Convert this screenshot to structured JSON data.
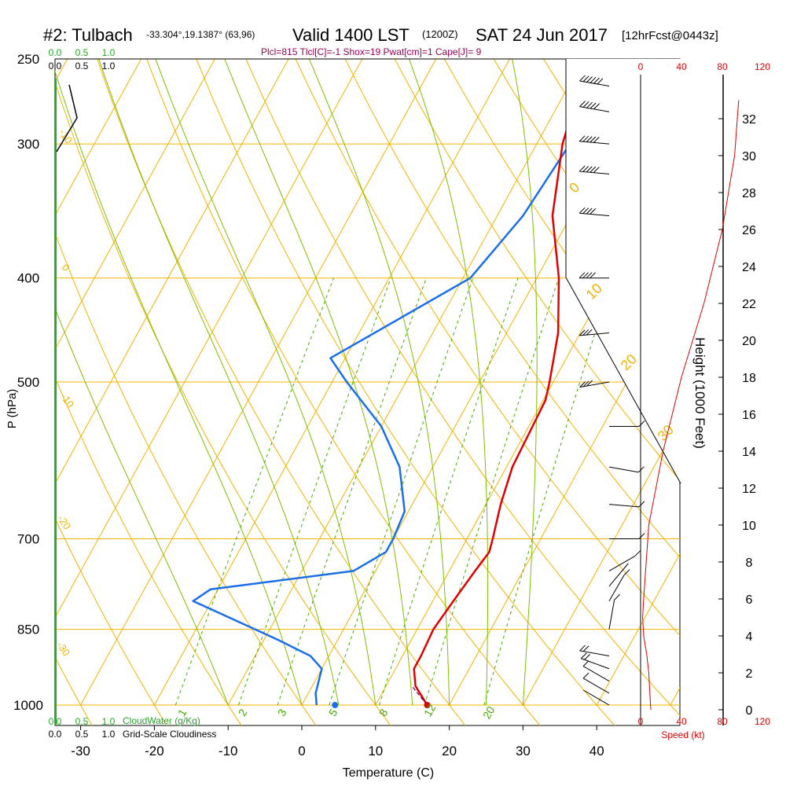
{
  "header": {
    "station": "#2: Tulbach",
    "coords": "-33.304°,19.1387° (63,96)",
    "valid": "Valid 1400 LST",
    "zulu": "(1200Z)",
    "date": "SAT 24 Jun 2017",
    "forecast": "[12hrFcst@0443z]",
    "params": "Plcl=815 Tlcl[C]=-1 Shox=19 Pwat[cm]=1 Cape[J]= 9"
  },
  "colors": {
    "isotherm": "#f0b400",
    "mixing": "#44aa00",
    "adiabat": "#7dbf00",
    "temperature": "#e00000",
    "dewpoint": "#1a6ee8",
    "cloud": "#22aa22",
    "speed": "#dd0000"
  },
  "chart_data": {
    "type": "skew-t",
    "xlabel": "Temperature (C)",
    "ylabel": "P (hPa)",
    "x_ticks": [
      "-30",
      "-20",
      "-10",
      "0",
      "10",
      "20",
      "30",
      "40"
    ],
    "x_values": [
      -30,
      -20,
      -10,
      0,
      10,
      20,
      30,
      40
    ],
    "pressure_ticks": [
      "250",
      "300",
      "400",
      "500",
      "700",
      "850",
      "1000"
    ],
    "pressure_values": [
      250,
      300,
      400,
      500,
      700,
      850,
      1000
    ],
    "height_label": "Height (1000 Feet)",
    "height_ticks": [
      "0",
      "2",
      "4",
      "6",
      "8",
      "10",
      "12",
      "14",
      "16",
      "18",
      "20",
      "22",
      "24",
      "26",
      "28",
      "30",
      "32"
    ],
    "speed_label": "Speed (kt)",
    "speed_ticks": [
      "0",
      "40",
      "80",
      "120"
    ],
    "cloud_water_ticks": [
      "0.0",
      "0.5",
      "1.0"
    ],
    "cloud_water_label": "CloudWater (g/Kg)",
    "cloudiness_ticks": [
      "0.0",
      "0.5",
      "1.0"
    ],
    "cloudiness_label": "Grid-Scale Cloudiness",
    "mixing_ratio_labels": [
      "1",
      "2",
      "3",
      "5",
      "8",
      "12",
      "20"
    ],
    "isotherm_labels": [
      "0",
      "10",
      "20",
      "30"
    ],
    "adiabat_labels": [
      "-10",
      "0",
      "-10",
      "-20",
      "-30"
    ],
    "temperature_profile": [
      {
        "p": 1000,
        "t": 17
      },
      {
        "p": 960,
        "t": 14
      },
      {
        "p": 925,
        "t": 12.5
      },
      {
        "p": 900,
        "t": 12.5
      },
      {
        "p": 850,
        "t": 12.2
      },
      {
        "p": 800,
        "t": 12.8
      },
      {
        "p": 750,
        "t": 13.5
      },
      {
        "p": 720,
        "t": 14
      },
      {
        "p": 700,
        "t": 13.5
      },
      {
        "p": 650,
        "t": 12
      },
      {
        "p": 600,
        "t": 10.8
      },
      {
        "p": 550,
        "t": 10.5
      },
      {
        "p": 520,
        "t": 10.3
      },
      {
        "p": 500,
        "t": 9.5
      },
      {
        "p": 450,
        "t": 7
      },
      {
        "p": 400,
        "t": 3
      },
      {
        "p": 350,
        "t": -2.5
      },
      {
        "p": 300,
        "t": -6.5
      },
      {
        "p": 265,
        "t": -8.5
      }
    ],
    "dewpoint_profile": [
      {
        "p": 1000,
        "t": 2
      },
      {
        "p": 975,
        "t": 1
      },
      {
        "p": 925,
        "t": 0
      },
      {
        "p": 900,
        "t": -2.5
      },
      {
        "p": 870,
        "t": -8
      },
      {
        "p": 850,
        "t": -12
      },
      {
        "p": 800,
        "t": -22.5
      },
      {
        "p": 780,
        "t": -21
      },
      {
        "p": 750,
        "t": -3
      },
      {
        "p": 720,
        "t": 0
      },
      {
        "p": 700,
        "t": 0
      },
      {
        "p": 660,
        "t": -0.5
      },
      {
        "p": 600,
        "t": -4.5
      },
      {
        "p": 550,
        "t": -10
      },
      {
        "p": 500,
        "t": -18
      },
      {
        "p": 475,
        "t": -22
      },
      {
        "p": 400,
        "t": -9
      },
      {
        "p": 350,
        "t": -6.5
      },
      {
        "p": 300,
        "t": -5.5
      },
      {
        "p": 265,
        "t": -7
      }
    ],
    "surface_temperature": 17,
    "surface_dewpoint": 4.5,
    "wind_profile": [
      {
        "p": 1000,
        "speed": 8,
        "dir": 300
      },
      {
        "p": 975,
        "speed": 10,
        "dir": 300
      },
      {
        "p": 950,
        "speed": 12,
        "dir": 300
      },
      {
        "p": 925,
        "speed": 20,
        "dir": 290
      },
      {
        "p": 900,
        "speed": 22,
        "dir": 280
      },
      {
        "p": 850,
        "speed": 14,
        "dir": 10
      },
      {
        "p": 800,
        "speed": 10,
        "dir": 30
      },
      {
        "p": 775,
        "speed": 8,
        "dir": 40
      },
      {
        "p": 750,
        "speed": 12,
        "dir": 60
      },
      {
        "p": 700,
        "speed": 14,
        "dir": 90
      },
      {
        "p": 650,
        "speed": 15,
        "dir": 95
      },
      {
        "p": 600,
        "speed": 14,
        "dir": 100
      },
      {
        "p": 550,
        "speed": 12,
        "dir": 90
      },
      {
        "p": 500,
        "speed": 30,
        "dir": 260
      },
      {
        "p": 450,
        "speed": 35,
        "dir": 265
      },
      {
        "p": 400,
        "speed": 40,
        "dir": 270
      },
      {
        "p": 350,
        "speed": 45,
        "dir": 275
      },
      {
        "p": 320,
        "speed": 50,
        "dir": 275
      },
      {
        "p": 300,
        "speed": 55,
        "dir": 275
      },
      {
        "p": 280,
        "speed": 55,
        "dir": 280
      },
      {
        "p": 265,
        "speed": 60,
        "dir": 280
      }
    ],
    "wind_speed_profile": [
      {
        "h": 0,
        "s": 10
      },
      {
        "h": 2,
        "s": 8
      },
      {
        "h": 3,
        "s": 6
      },
      {
        "h": 4,
        "s": 3
      },
      {
        "h": 5,
        "s": 2
      },
      {
        "h": 6,
        "s": 3
      },
      {
        "h": 10,
        "s": 8
      },
      {
        "h": 14,
        "s": 22
      },
      {
        "h": 18,
        "s": 40
      },
      {
        "h": 22,
        "s": 62
      },
      {
        "h": 26,
        "s": 80
      },
      {
        "h": 30,
        "s": 92
      },
      {
        "h": 33,
        "s": 96
      }
    ]
  }
}
